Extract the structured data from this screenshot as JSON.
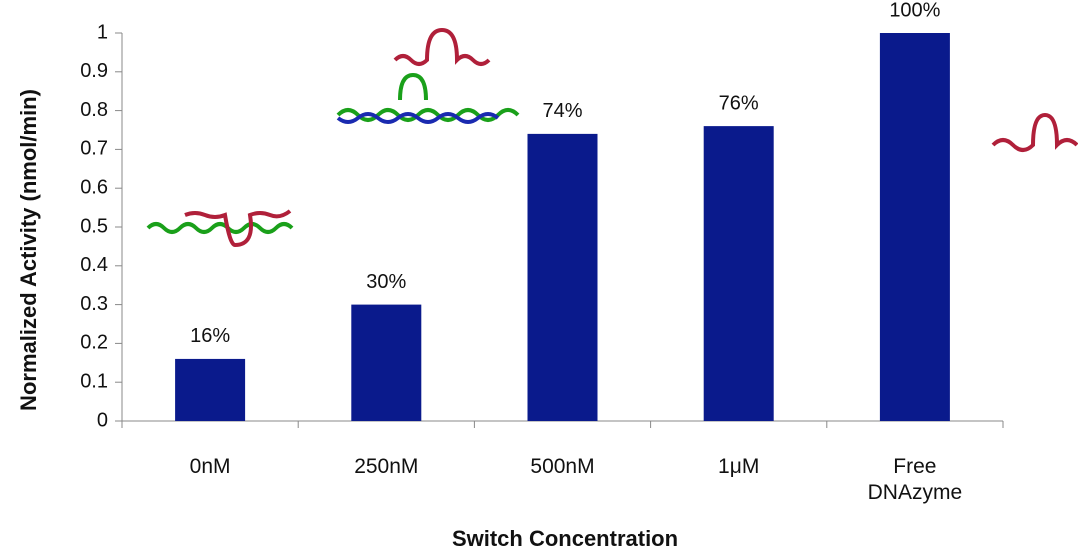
{
  "chart_data": {
    "type": "bar",
    "x_label": "Switch Concentration",
    "y_label": "Normalized Activity (nmol/min)",
    "categories": [
      "0nM",
      "250nM",
      "500nM",
      "1μM",
      "Free DNAzyme"
    ],
    "values": [
      0.16,
      0.3,
      0.74,
      0.76,
      1.0
    ],
    "value_labels": [
      "16%",
      "30%",
      "74%",
      "76%",
      "100%"
    ],
    "color": "#0a1a8c",
    "ylim": [
      0,
      1
    ],
    "yticks": [
      0,
      0.1,
      0.2,
      0.3,
      0.4,
      0.5,
      0.6,
      0.7,
      0.8,
      0.9,
      1
    ]
  }
}
